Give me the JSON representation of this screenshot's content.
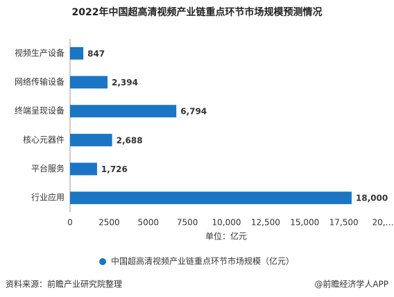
{
  "chart_data": {
    "type": "bar",
    "orientation": "horizontal",
    "title": "2022年中国超高清视频产业链重点环节市场规模预测情况",
    "categories": [
      "视频生产设备",
      "网络传输设备",
      "终端呈现设备",
      "核心元器件",
      "平台服务",
      "行业应用"
    ],
    "series": [
      {
        "name": "中国超高清视频产业链重点环节市场规模（亿元）",
        "color": "#1a75c4",
        "values": [
          847,
          2394,
          6794,
          2688,
          1726,
          18000
        ],
        "value_labels": [
          "847",
          "2,394",
          "6,794",
          "2,688",
          "1,726",
          "18,000"
        ]
      }
    ],
    "xlim": [
      0,
      20000
    ],
    "xticks": [
      0,
      2500,
      5000,
      7500,
      {
        "value": 10000,
        "label": "10,000"
      },
      {
        "value": 12500,
        "label": "12,500"
      },
      {
        "value": 15000,
        "label": "15,000"
      },
      {
        "value": 17500,
        "label": "17,500"
      },
      {
        "value": 20000,
        "label": "20,…"
      }
    ],
    "x_axis_label": "单位：亿元",
    "source": "资料来源：前瞻产业研究院整理",
    "footer_right": "@前瞻经济学人APP",
    "grid": false,
    "legend": "bottom"
  }
}
